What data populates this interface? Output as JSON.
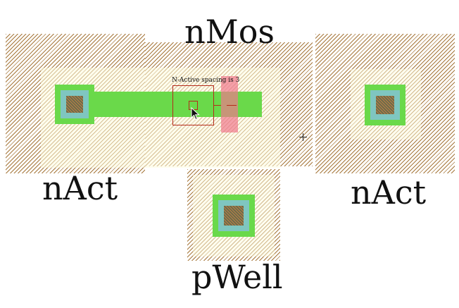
{
  "labels": {
    "nmos": "nMos",
    "nact_left": "nAct",
    "nact_right": "nAct",
    "pwell": "pWell"
  },
  "drc": {
    "message": "N-Active spacing is 3"
  },
  "colors": {
    "well_hatch": "#965f19",
    "select_yellow": "#fdfbdf",
    "active_green": "#6ad94a",
    "metal_cyan": "#7fc6c0",
    "contact": "#6b6b4a",
    "poly_pink": "#f0788c",
    "drc_red": "#b52a1a"
  },
  "icons": {
    "cursor": "arrow-cursor-icon",
    "crosshair": "crosshair-icon"
  }
}
